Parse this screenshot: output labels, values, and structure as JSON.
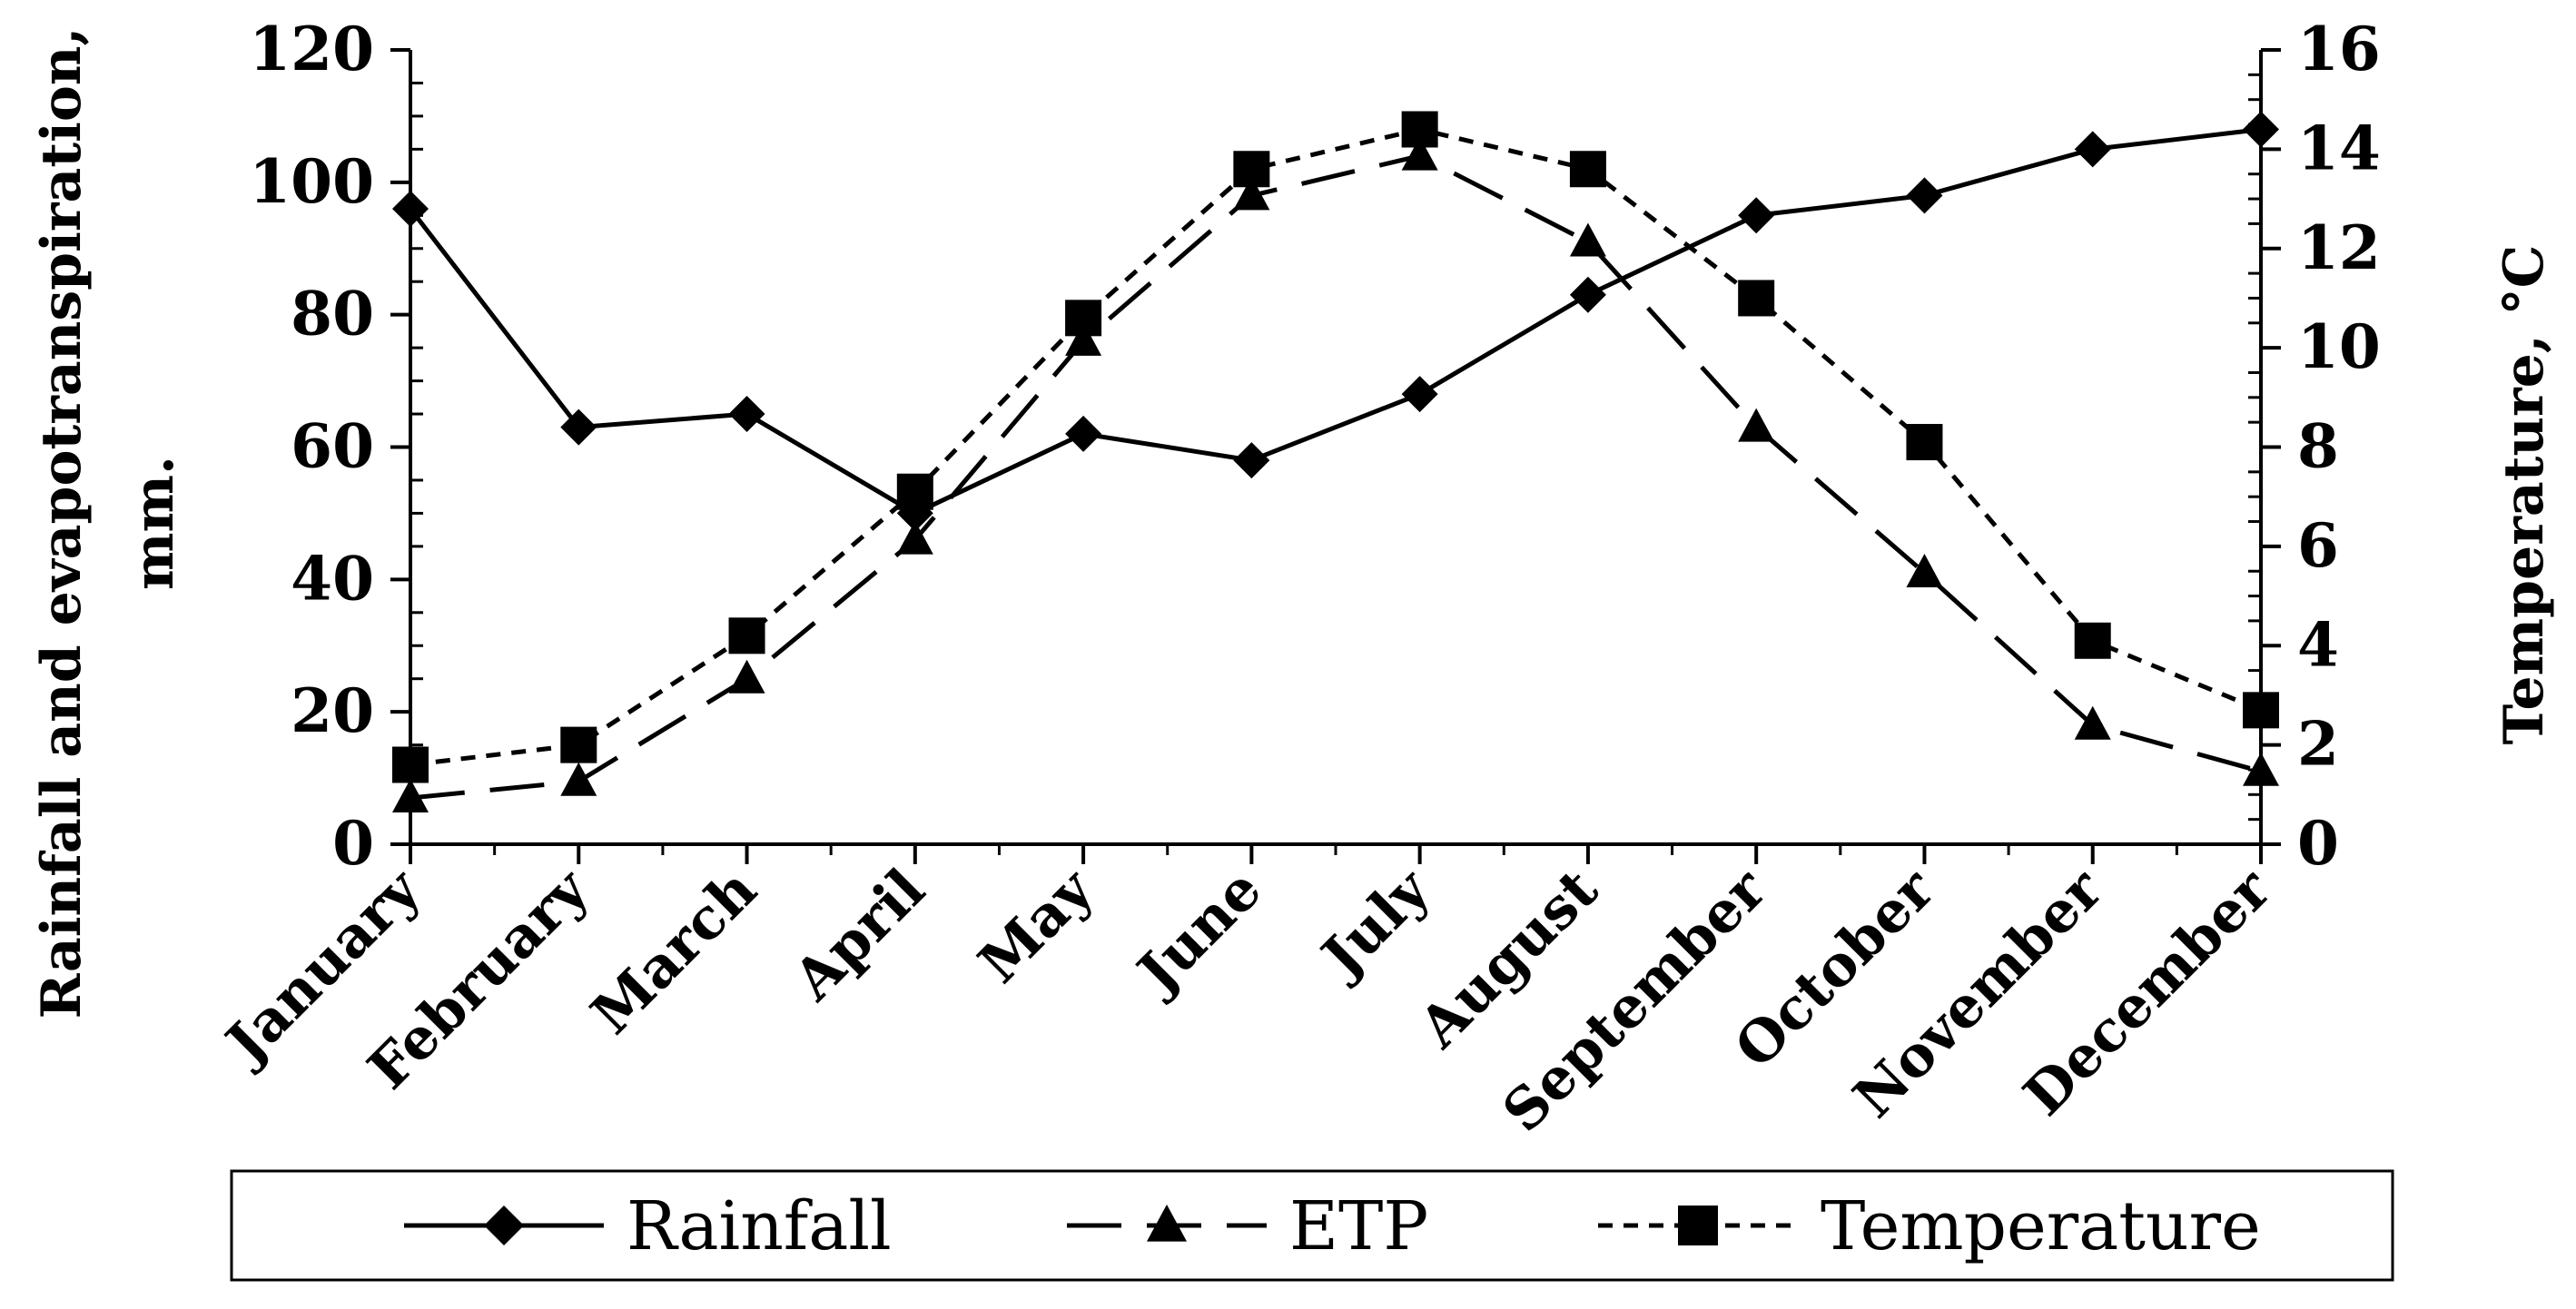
{
  "chart_data": {
    "type": "line",
    "title": "",
    "categories": [
      "January",
      "February",
      "March",
      "April",
      "May",
      "June",
      "July",
      "August",
      "September",
      "October",
      "November",
      "December"
    ],
    "series": [
      {
        "name": "Rainfall",
        "axis": "left",
        "marker": "diamond",
        "line_style": "solid",
        "values": [
          96,
          63,
          65,
          50,
          62,
          58,
          68,
          83,
          95,
          98,
          105,
          108
        ]
      },
      {
        "name": "ETP",
        "axis": "left",
        "marker": "triangle",
        "line_style": "long-dash",
        "values": [
          7,
          9.5,
          25,
          46,
          76,
          98,
          104,
          91,
          63,
          41,
          18,
          11
        ]
      },
      {
        "name": "Temperature",
        "axis": "right",
        "marker": "square",
        "line_style": "short-dash",
        "values": [
          1.6,
          2.0,
          4.2,
          7.1,
          10.6,
          13.6,
          14.4,
          13.6,
          11.0,
          8.1,
          4.1,
          2.7
        ]
      }
    ],
    "ylabel": "Rainfall and evapotranspiration, mm.",
    "y2label": "Temperature, °C",
    "ylim": [
      0,
      120
    ],
    "y2lim": [
      0,
      16
    ],
    "yticks": [
      0,
      20,
      40,
      60,
      80,
      100,
      120
    ],
    "y2ticks": [
      0,
      2,
      4,
      6,
      8,
      10,
      12,
      14,
      16
    ],
    "grid": false,
    "legend": "bottom"
  },
  "colors": {
    "line": "#000000",
    "background": "#ffffff"
  }
}
